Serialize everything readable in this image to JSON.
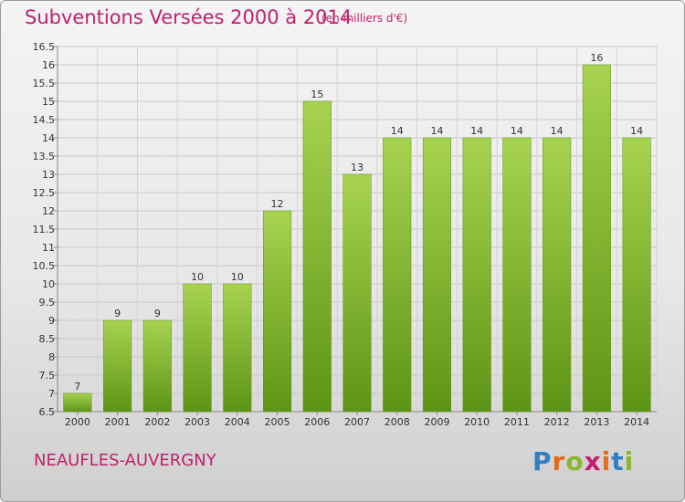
{
  "header": {
    "title": "Subventions Versées 2000 à 2014",
    "subtitle": "(en milliers d'€)"
  },
  "footer": {
    "commune": "NEAUFLES-AUVERGNY",
    "logo": {
      "letters": [
        "P",
        "r",
        "o",
        "x",
        "i",
        "t",
        "i"
      ],
      "colors": [
        "#2f7fc4",
        "#e46a1c",
        "#8ab82c",
        "#c0206e",
        "#e46a1c",
        "#2f7fc4",
        "#8ab82c"
      ]
    }
  },
  "chart_data": {
    "type": "bar",
    "categories": [
      "2000",
      "2001",
      "2002",
      "2003",
      "2004",
      "2005",
      "2006",
      "2007",
      "2008",
      "2009",
      "2010",
      "2011",
      "2012",
      "2013",
      "2014"
    ],
    "values": [
      7,
      9,
      9,
      10,
      10,
      12,
      15,
      13,
      14,
      14,
      14,
      14,
      14,
      16,
      14
    ],
    "value_labels": [
      "7",
      "9",
      "9",
      "10",
      "10",
      "12",
      "15",
      "13",
      "14",
      "14",
      "14",
      "14",
      "14",
      "16",
      "14"
    ],
    "ylim": [
      6.5,
      16.5
    ],
    "yticks": [
      6.5,
      7,
      7.5,
      8,
      8.5,
      9,
      9.5,
      10,
      10.5,
      11,
      11.5,
      12,
      12.5,
      13,
      13.5,
      14,
      14.5,
      15,
      15.5,
      16,
      16.5
    ],
    "ytick_labels": [
      "6.5",
      "7",
      "7.5",
      "8",
      "8.5",
      "9",
      "9.5",
      "10",
      "10.5",
      "11",
      "11.5",
      "12",
      "12.5",
      "13",
      "13.5",
      "14",
      "14.5",
      "15",
      "15.5",
      "16",
      "16.5"
    ],
    "grid": true,
    "bar_color": "#7fb52a",
    "bar_color_light": "#a7d350",
    "bar_color_dark": "#5e9414"
  }
}
